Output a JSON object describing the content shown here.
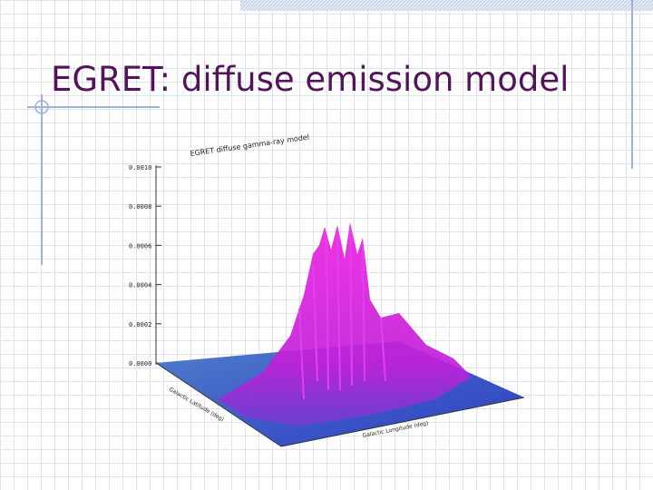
{
  "slide": {
    "title": "EGRET: diffuse emission model"
  },
  "figure": {
    "title": "EGRET diffuse gamma-ray model",
    "z_ticks": [
      "0.0010",
      "0.0008",
      "0.0006",
      "0.0004",
      "0.0002",
      "0.0000"
    ],
    "y_label": "Galactic Latitude (deg)",
    "x_label": "Galactic Longitude (deg)"
  }
}
